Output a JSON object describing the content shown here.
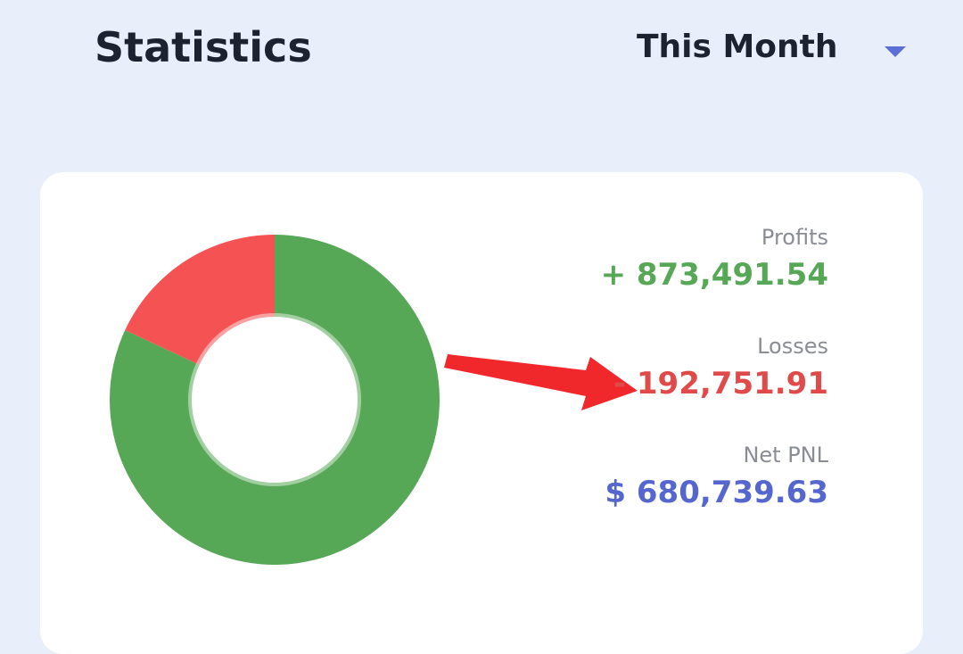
{
  "header": {
    "title": "Statistics",
    "period_label": "This Month"
  },
  "stats": {
    "profits_label": "Profits",
    "profits_value": "+ 873,491.54",
    "losses_label": "Losses",
    "losses_value": "- 192,751.91",
    "net_label": "Net PNL",
    "net_value": "$ 680,739.63"
  },
  "icons": {
    "dropdown": "chevron-down-icon",
    "annotation": "arrow-right-icon"
  },
  "colors": {
    "background": "#e8eefa",
    "profit": "#56a856",
    "loss": "#f55353",
    "net": "#5567cf",
    "annotation_arrow": "#f0282b"
  },
  "chart_data": {
    "type": "pie",
    "categories": [
      "Profits",
      "Losses"
    ],
    "values": [
      873491.54,
      192751.91
    ]
  }
}
